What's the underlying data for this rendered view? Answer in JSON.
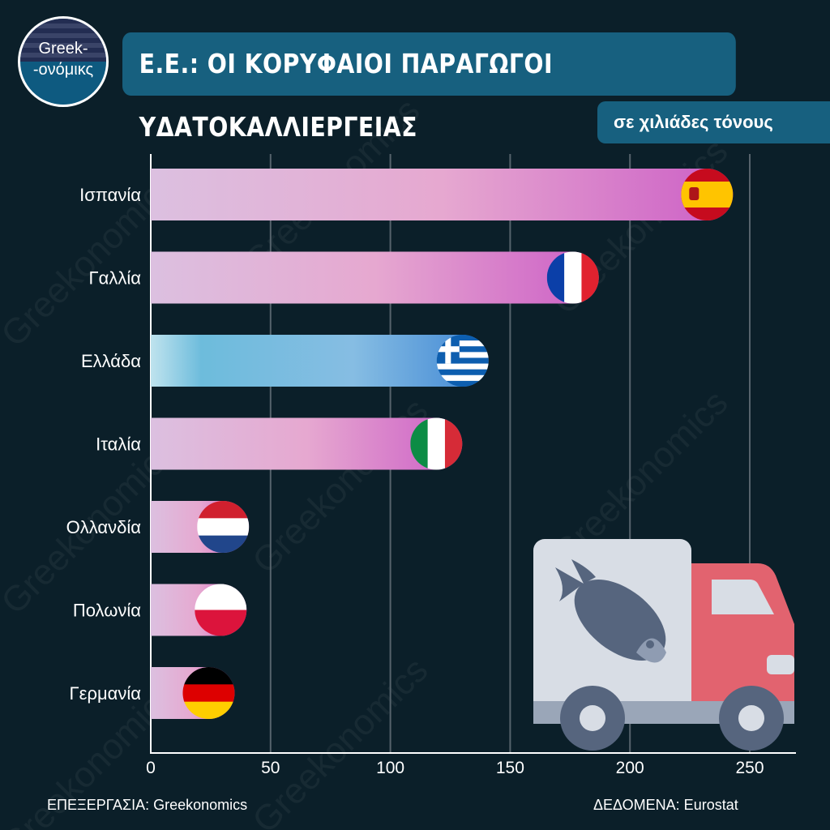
{
  "logo": {
    "line1": "Greek-",
    "line2": "-ονόμικς"
  },
  "title": "Ε.Ε.: ΟΙ ΚΟΡΥΦΑΙΟΙ ΠΑΡΑΓΩΓΟΙ ΥΔΑΤΟΚΑΛΛΙΕΡΓΕΙΑΣ",
  "subtitle": "σε χιλιάδες τόνους",
  "footer": {
    "left": "ΕΠΕΞΕΡΓΑΣΙΑ: Greekonomics",
    "right": "ΔΕΔΟΜΕΝΑ: Eurostat"
  },
  "watermark": "Greekonomics",
  "chart_data": {
    "type": "bar",
    "orientation": "horizontal",
    "title": "Ε.Ε.: ΟΙ ΚΟΡΥΦΑΙΟΙ ΠΑΡΑΓΩΓΟΙ ΥΔΑΤΟΚΑΛΛΙΕΡΓΕΙΑΣ",
    "unit": "σε χιλιάδες τόνους",
    "categories": [
      "Ισπανία",
      "Γαλλία",
      "Ελλάδα",
      "Ιταλία",
      "Ολλανδία",
      "Πολωνία",
      "Γερμανία"
    ],
    "values": [
      243,
      187,
      141,
      130,
      41,
      40,
      35
    ],
    "flags": [
      "spain",
      "france",
      "greece",
      "italy",
      "netherlands",
      "poland",
      "germany"
    ],
    "xlim": [
      0,
      270
    ],
    "xticks": [
      "0",
      "50",
      "100",
      "150",
      "200",
      "250"
    ],
    "grid": true,
    "colors": {
      "default": "#d46bc6",
      "highlight": "#4a8fd6"
    }
  }
}
